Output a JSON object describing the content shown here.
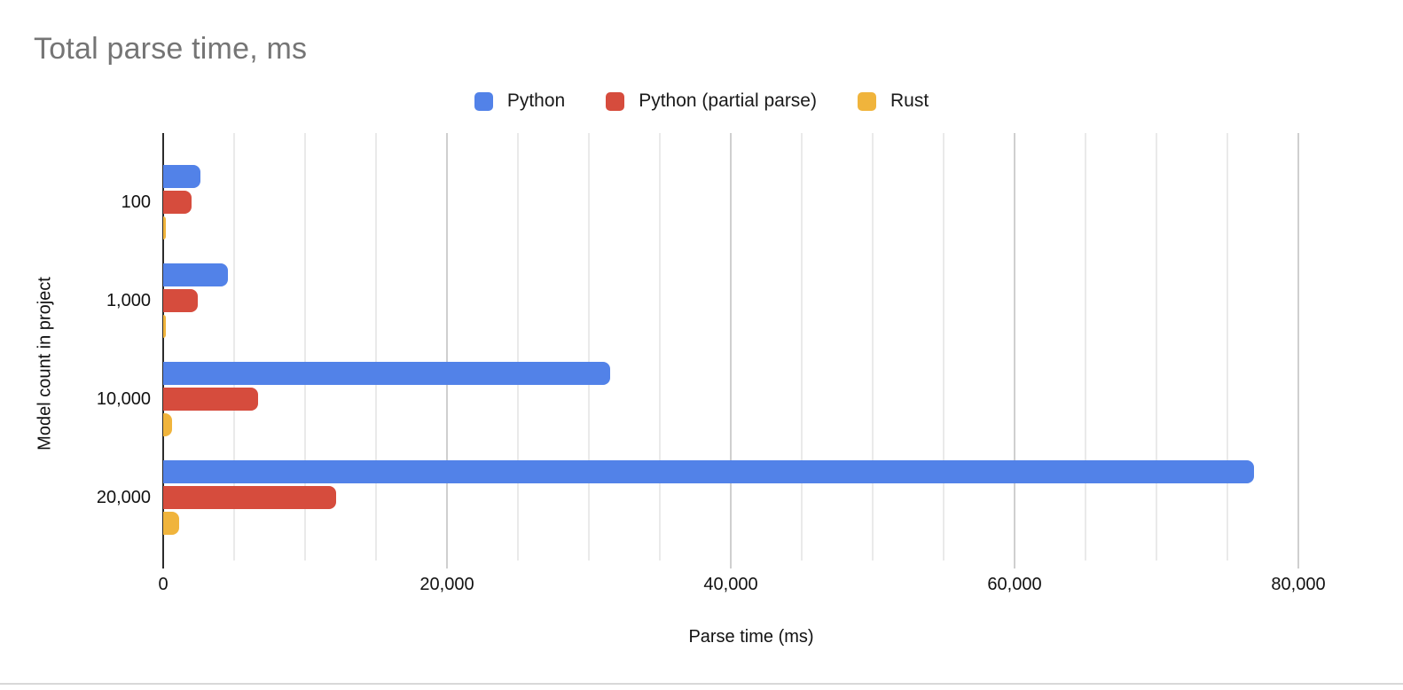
{
  "chart_data": {
    "type": "bar",
    "orientation": "horizontal",
    "title": "Total parse time, ms",
    "xlabel": "Parse time (ms)",
    "ylabel": "Model count in project",
    "categories": [
      "100",
      "1,000",
      "10,000",
      "20,000"
    ],
    "series": [
      {
        "name": "Python",
        "color": "#5282E8",
        "values": [
          2600,
          4550,
          31500,
          76900
        ]
      },
      {
        "name": "Python (partial parse)",
        "color": "#D64C3D",
        "values": [
          2000,
          2450,
          6700,
          12200
        ]
      },
      {
        "name": "Rust",
        "color": "#F0B43C",
        "values": [
          150,
          200,
          600,
          1100
        ]
      }
    ],
    "xlim": [
      0,
      82875
    ],
    "x_ticks": [
      {
        "value": 0,
        "label": "0"
      },
      {
        "value": 20000,
        "label": "20,000"
      },
      {
        "value": 40000,
        "label": "40,000"
      },
      {
        "value": 60000,
        "label": "60,000"
      },
      {
        "value": 80000,
        "label": "80,000"
      }
    ],
    "grid": {
      "minor_step": 5000,
      "major_step": 20000,
      "max_line": 80000
    },
    "legend_position": "top-center",
    "colors": {
      "title": "#757575",
      "axis_text": "#111111",
      "minor_grid": "#eaeaea",
      "major_grid": "#cfcfcf",
      "zero_axis": "#2b2b2b",
      "page_bottom_border": "#d8d8d8"
    }
  }
}
